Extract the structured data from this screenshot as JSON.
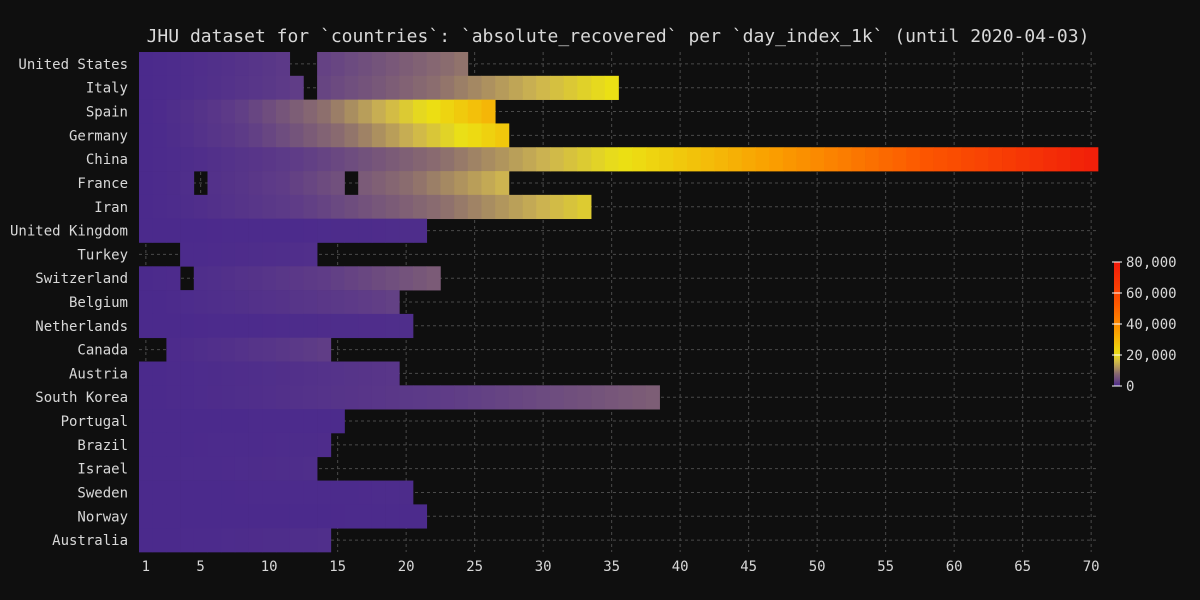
{
  "chart_data": {
    "type": "heatmap",
    "title": "JHU dataset for `countries`: `absolute_recovered` per `day_index_1k` (until 2020-04-03)",
    "x_ticks": [
      1,
      5,
      10,
      15,
      20,
      25,
      30,
      35,
      40,
      45,
      50,
      55,
      60,
      65,
      70
    ],
    "xlim": [
      1,
      70
    ],
    "grid": true,
    "colorbar": {
      "position": "right",
      "range": [
        0,
        80000
      ],
      "ticks": [
        0,
        20000,
        40000,
        60000,
        80000
      ],
      "tick_labels": [
        "0",
        "20,000",
        "40,000",
        "60,000",
        "80,000"
      ]
    },
    "rows": [
      {
        "country": "United States",
        "days": 24,
        "gaps": [
          12,
          13
        ],
        "max": 9000
      },
      {
        "country": "Italy",
        "days": 35,
        "gaps": [
          13
        ],
        "max": 21000
      },
      {
        "country": "Spain",
        "days": 26,
        "gaps": [],
        "max": 30000
      },
      {
        "country": "Germany",
        "days": 27,
        "gaps": [],
        "max": 26000
      },
      {
        "country": "China",
        "days": 70,
        "gaps": [],
        "max": 77000
      },
      {
        "country": "France",
        "days": 27,
        "gaps": [
          5,
          16
        ],
        "max": 15000
      },
      {
        "country": "Iran",
        "days": 33,
        "gaps": [],
        "max": 18000
      },
      {
        "country": "United Kingdom",
        "days": 21,
        "gaps": [],
        "max": 200
      },
      {
        "country": "Turkey",
        "days": 13,
        "gaps": [
          1,
          2,
          3
        ],
        "max": 400
      },
      {
        "country": "Switzerland",
        "days": 22,
        "gaps": [
          4
        ],
        "max": 6000
      },
      {
        "country": "Belgium",
        "days": 19,
        "gaps": [],
        "max": 2900
      },
      {
        "country": "Netherlands",
        "days": 20,
        "gaps": [],
        "max": 300
      },
      {
        "country": "Canada",
        "days": 14,
        "gaps": [
          1,
          2
        ],
        "max": 2500
      },
      {
        "country": "Austria",
        "days": 19,
        "gaps": [],
        "max": 1400
      },
      {
        "country": "South Korea",
        "days": 38,
        "gaps": [],
        "max": 6300
      },
      {
        "country": "Portugal",
        "days": 15,
        "gaps": [],
        "max": 50
      },
      {
        "country": "Brazil",
        "days": 14,
        "gaps": [],
        "max": 150
      },
      {
        "country": "Israel",
        "days": 13,
        "gaps": [],
        "max": 250
      },
      {
        "country": "Sweden",
        "days": 20,
        "gaps": [],
        "max": 100
      },
      {
        "country": "Norway",
        "days": 21,
        "gaps": [],
        "max": 30
      },
      {
        "country": "Australia",
        "days": 14,
        "gaps": [],
        "max": 350
      }
    ]
  },
  "colors": {
    "background": "#0f0f0f",
    "grid": "#4a4a4a",
    "text": "#d8d8d8"
  }
}
